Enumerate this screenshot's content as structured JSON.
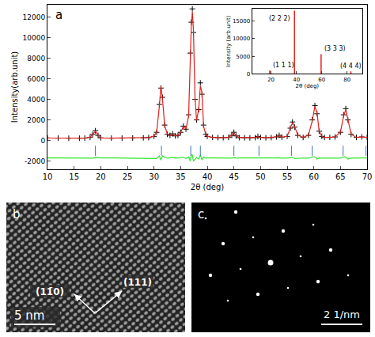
{
  "chart_data": {
    "type": "scatter",
    "panel": "a",
    "x_label": "2θ (deg)",
    "y_label": "Intensity(arb.unit)",
    "xlim": [
      10,
      70
    ],
    "ylim": [
      -2800,
      13200
    ],
    "xticks": [
      10,
      15,
      20,
      25,
      30,
      35,
      40,
      45,
      50,
      55,
      60,
      65,
      70
    ],
    "yticks": [
      -2000,
      0,
      2000,
      4000,
      6000,
      8000,
      10000,
      12000
    ],
    "grid": false,
    "x": [
      10,
      12,
      14,
      16,
      17,
      18,
      18.5,
      19,
      19.5,
      20,
      22,
      24,
      26,
      28,
      29,
      30,
      30.5,
      31,
      31.3,
      31.6,
      32,
      32.5,
      33,
      33.5,
      34,
      34.5,
      35,
      35.5,
      36,
      36.5,
      36.8,
      37,
      37.2,
      37.4,
      37.7,
      38,
      38.4,
      38.7,
      39,
      39.3,
      39.7,
      40,
      41,
      42,
      43,
      44,
      44.6,
      45,
      45.4,
      46,
      47,
      48,
      49,
      49.5,
      50,
      51,
      52,
      53,
      53.5,
      54,
      55,
      55.6,
      56,
      56.4,
      57,
      58,
      59,
      59.7,
      60.2,
      60.6,
      61,
      61.5,
      62,
      63,
      64,
      65,
      65.6,
      66,
      66.4,
      67,
      68,
      69,
      70
    ],
    "series": [
      {
        "type": "scatter",
        "marker": "cross",
        "color": "#000000",
        "values": [
          250,
          230,
          220,
          220,
          230,
          300,
          600,
          950,
          500,
          260,
          230,
          230,
          240,
          260,
          280,
          400,
          800,
          3500,
          5100,
          4200,
          1500,
          600,
          500,
          650,
          450,
          500,
          800,
          1400,
          1100,
          2500,
          8500,
          11500,
          12800,
          10500,
          4000,
          2000,
          3000,
          5600,
          4500,
          1500,
          600,
          400,
          300,
          280,
          270,
          300,
          500,
          800,
          450,
          280,
          260,
          260,
          280,
          400,
          300,
          260,
          280,
          350,
          500,
          320,
          400,
          1200,
          1800,
          1300,
          500,
          300,
          500,
          2000,
          3400,
          2600,
          900,
          400,
          300,
          300,
          350,
          800,
          2500,
          3100,
          2000,
          600,
          300,
          350,
          300
        ]
      },
      {
        "type": "line",
        "line_style": "solid",
        "color": "#e0201b",
        "values": [
          240,
          225,
          220,
          225,
          235,
          320,
          620,
          900,
          480,
          250,
          230,
          232,
          240,
          255,
          285,
          420,
          850,
          3300,
          5300,
          4000,
          1450,
          620,
          480,
          600,
          460,
          520,
          780,
          1350,
          1150,
          2400,
          8800,
          11200,
          12500,
          10800,
          4100,
          1950,
          3100,
          5300,
          4700,
          1400,
          620,
          400,
          300,
          280,
          275,
          310,
          520,
          760,
          460,
          280,
          265,
          260,
          280,
          390,
          300,
          265,
          285,
          340,
          470,
          330,
          410,
          1150,
          1750,
          1350,
          520,
          305,
          520,
          1900,
          3300,
          2700,
          920,
          410,
          300,
          305,
          360,
          820,
          2400,
          3000,
          2100,
          610,
          300,
          340,
          300
        ]
      },
      {
        "type": "line",
        "line_style": "solid",
        "color": "#2ee82e",
        "values": [
          -1690,
          -1695,
          -1700,
          -1705,
          -1705,
          -1720,
          -1720,
          -1650,
          -1680,
          -1690,
          -1700,
          -1702,
          -1700,
          -1695,
          -1705,
          -1720,
          -1750,
          -1500,
          -1900,
          -1500,
          -1650,
          -1720,
          -1680,
          -1650,
          -1710,
          -1720,
          -1680,
          -1650,
          -1750,
          -1600,
          -2000,
          -1400,
          -1400,
          -2000,
          -1800,
          -1650,
          -1800,
          -1400,
          -1900,
          -1600,
          -1720,
          -1700,
          -1700,
          -1700,
          -1705,
          -1710,
          -1720,
          -1660,
          -1710,
          -1700,
          -1705,
          -1700,
          -1700,
          -1690,
          -1700,
          -1705,
          -1705,
          -1690,
          -1670,
          -1710,
          -1710,
          -1650,
          -1650,
          -1750,
          -1720,
          -1705,
          -1720,
          -1600,
          -1600,
          -1800,
          -1720,
          -1710,
          -1700,
          -1705,
          -1710,
          -1720,
          -1600,
          -1600,
          -1800,
          -1710,
          -1700,
          -1690,
          -1700
        ]
      },
      {
        "type": "scatter",
        "marker": "vline",
        "color": "#3a6fc4",
        "x": [
          19,
          31.4,
          36.9,
          38.7,
          45,
          49.7,
          55.8,
          59.7,
          65.5,
          69.8
        ],
        "values": [
          -1000,
          -1000,
          -1000,
          -1000,
          -1000,
          -1000,
          -1000,
          -1000,
          -1000,
          -1000
        ]
      }
    ],
    "inset": {
      "type": "bar",
      "x_label": "2θ (deg)",
      "y_label": "Intensity (arb.unit)",
      "xlim": [
        5,
        92
      ],
      "ylim": [
        0,
        18500
      ],
      "xticks": [
        20,
        40,
        60,
        80
      ],
      "yticks": [
        0,
        5000,
        10000,
        15000
      ],
      "color": "#e0201b",
      "x": [
        19,
        38.5,
        59.5,
        83
      ],
      "values": [
        1000,
        18000,
        5600,
        700
      ],
      "data_labels": [
        "(1 1 1)",
        "(2 2 2)",
        "(3 3 3)",
        "(4 4 4)"
      ]
    }
  },
  "images": [
    {
      "panel": "b",
      "scale_bar": "5 nm",
      "directions": [
        "(11̄0)",
        "(111)"
      ]
    },
    {
      "panel": "c",
      "scale_bar": "2 1/nm"
    }
  ]
}
